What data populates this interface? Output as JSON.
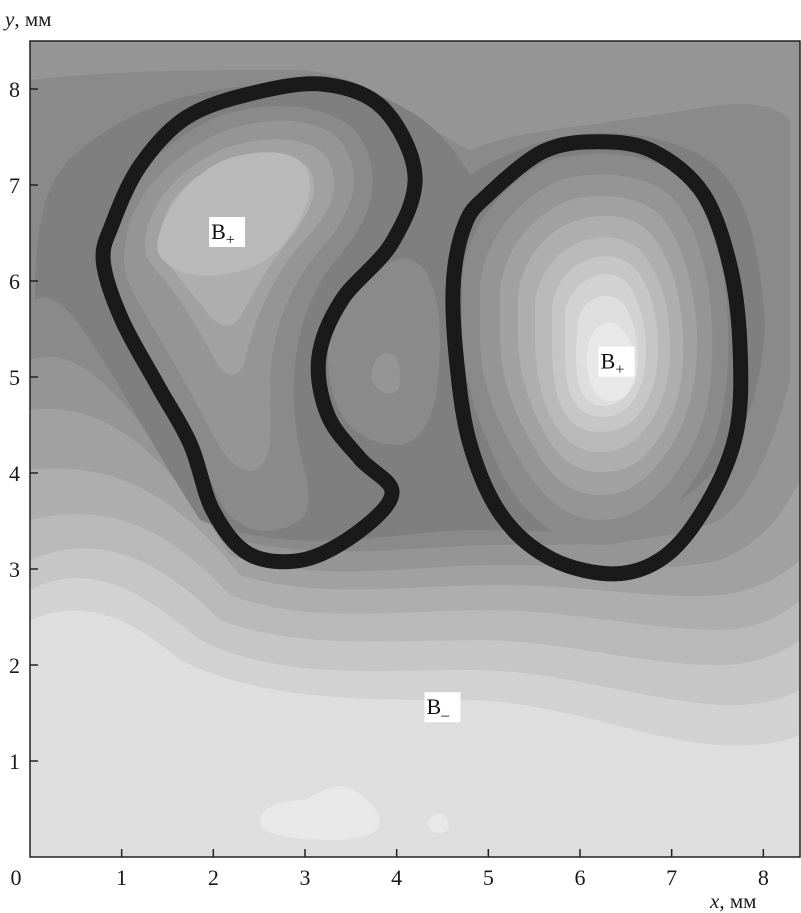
{
  "chart_data": {
    "type": "contour",
    "xlabel_var": "x",
    "xlabel_unit": ", мм",
    "ylabel_var": "y",
    "ylabel_unit": ", мм",
    "xlim": [
      0,
      8.4
    ],
    "ylim": [
      0,
      8.5
    ],
    "xticks": [
      0,
      1,
      2,
      3,
      4,
      5,
      6,
      7,
      8
    ],
    "yticks": [
      1,
      2,
      3,
      4,
      5,
      6,
      7,
      8
    ],
    "grid": false,
    "legend": "none",
    "annotations": [
      {
        "text": "B",
        "sub": "+",
        "x": 2.15,
        "y": 6.5
      },
      {
        "text": "B",
        "sub": "+",
        "x": 6.4,
        "y": 5.15
      },
      {
        "text": "B",
        "sub": "–",
        "x": 4.5,
        "y": 1.55
      }
    ],
    "zero_level_curves": [
      {
        "name": "left B+ boundary",
        "points": [
          [
            0.9,
            6.6
          ],
          [
            1.2,
            7.2
          ],
          [
            1.7,
            7.7
          ],
          [
            2.4,
            7.95
          ],
          [
            3.2,
            8.05
          ],
          [
            3.85,
            7.8
          ],
          [
            4.2,
            7.1
          ],
          [
            3.95,
            6.4
          ],
          [
            3.4,
            5.8
          ],
          [
            3.15,
            5.2
          ],
          [
            3.25,
            4.6
          ],
          [
            3.6,
            4.15
          ],
          [
            3.95,
            3.8
          ],
          [
            3.6,
            3.4
          ],
          [
            3.0,
            3.1
          ],
          [
            2.4,
            3.15
          ],
          [
            2.0,
            3.6
          ],
          [
            1.75,
            4.3
          ],
          [
            1.4,
            4.9
          ],
          [
            1.0,
            5.6
          ],
          [
            0.8,
            6.2
          ]
        ]
      },
      {
        "name": "right B+ boundary",
        "points": [
          [
            4.75,
            6.6
          ],
          [
            5.0,
            6.9
          ],
          [
            5.6,
            7.35
          ],
          [
            6.2,
            7.45
          ],
          [
            6.8,
            7.35
          ],
          [
            7.35,
            6.9
          ],
          [
            7.65,
            6.1
          ],
          [
            7.75,
            5.2
          ],
          [
            7.7,
            4.4
          ],
          [
            7.4,
            3.7
          ],
          [
            6.95,
            3.15
          ],
          [
            6.4,
            2.95
          ],
          [
            5.7,
            3.1
          ],
          [
            5.15,
            3.55
          ],
          [
            4.8,
            4.3
          ],
          [
            4.65,
            5.2
          ],
          [
            4.62,
            6.0
          ]
        ]
      }
    ],
    "shade_levels": [
      "#dedede",
      "#d2d2d2",
      "#c6c6c6",
      "#b9b9b9",
      "#aeaeae",
      "#a1a1a1",
      "#959595",
      "#8a8a8a",
      "#7f7f7f"
    ],
    "zero_line_color": "#1a1a1a"
  }
}
